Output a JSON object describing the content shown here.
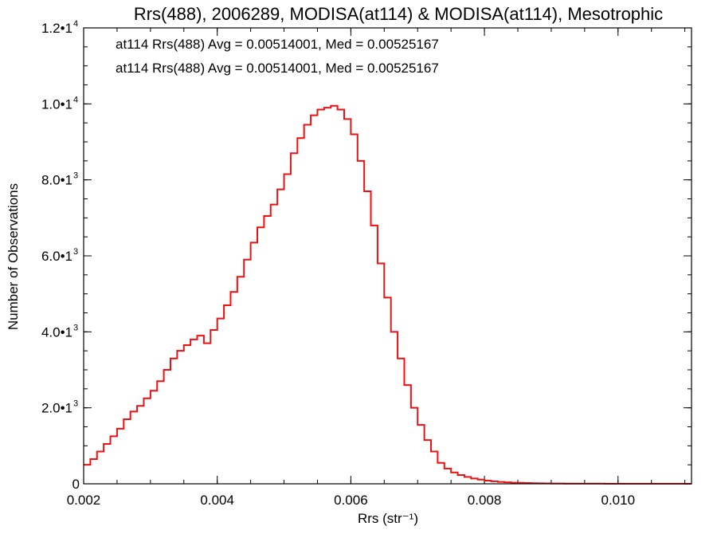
{
  "chart_data": {
    "type": "line",
    "title": "Rrs(488), 2006289, MODISA(at114) & MODISA(at114), Mesotrophic",
    "xlabel": "Rrs (str⁻¹)",
    "ylabel": "Number of Observations",
    "xlim": [
      0.002,
      0.0111
    ],
    "ylim": [
      0,
      12000
    ],
    "grid": false,
    "x_ticks": [
      {
        "value": 0.002,
        "label": "0.002"
      },
      {
        "value": 0.004,
        "label": "0.004"
      },
      {
        "value": 0.006,
        "label": "0.006"
      },
      {
        "value": 0.008,
        "label": "0.008"
      },
      {
        "value": 0.01,
        "label": "0.010"
      }
    ],
    "y_ticks": [
      {
        "value": 0,
        "label": "0",
        "exp": ""
      },
      {
        "value": 2000,
        "label": "2.0•1",
        "exp": "3"
      },
      {
        "value": 4000,
        "label": "4.0•1",
        "exp": "3"
      },
      {
        "value": 6000,
        "label": "6.0•1",
        "exp": "3"
      },
      {
        "value": 8000,
        "label": "8.0•1",
        "exp": "3"
      },
      {
        "value": 10000,
        "label": "1.0•1",
        "exp": "4"
      },
      {
        "value": 12000,
        "label": "1.2•1",
        "exp": "4"
      }
    ],
    "annotations": [
      {
        "text": "at114 Rrs(488) Avg = 0.00514001, Med = 0.00525167",
        "color": "#000000"
      },
      {
        "text": "at114 Rrs(488) Avg = 0.00514001, Med = 0.00525167",
        "color": "#ee1111"
      }
    ],
    "series": [
      {
        "color": "#ee1111",
        "step": true,
        "x": [
          0.002,
          0.0021,
          0.0022,
          0.0023,
          0.0024,
          0.0025,
          0.0026,
          0.0027,
          0.0028,
          0.0029,
          0.003,
          0.0031,
          0.0032,
          0.0033,
          0.0034,
          0.0035,
          0.0036,
          0.0037,
          0.0038,
          0.0039,
          0.004,
          0.0041,
          0.0042,
          0.0043,
          0.0044,
          0.0045,
          0.0046,
          0.0047,
          0.0048,
          0.0049,
          0.005,
          0.0051,
          0.0052,
          0.0053,
          0.0054,
          0.0055,
          0.0056,
          0.0057,
          0.0058,
          0.0059,
          0.006,
          0.0061,
          0.0062,
          0.0063,
          0.0064,
          0.0065,
          0.0066,
          0.0067,
          0.0068,
          0.0069,
          0.007,
          0.0071,
          0.0072,
          0.0073,
          0.0074,
          0.0075,
          0.0076,
          0.0077,
          0.0078,
          0.0079,
          0.008,
          0.0081,
          0.0082,
          0.0083,
          0.0084,
          0.0085,
          0.0086,
          0.0087,
          0.0088,
          0.0089,
          0.009,
          0.0092,
          0.0094,
          0.0096,
          0.0098,
          0.01,
          0.0102,
          0.0104,
          0.0106,
          0.0108,
          0.011,
          0.0111
        ],
        "values": [
          500,
          650,
          850,
          1050,
          1250,
          1450,
          1700,
          1900,
          2050,
          2250,
          2450,
          2700,
          3000,
          3300,
          3500,
          3650,
          3800,
          3900,
          3700,
          4050,
          4350,
          4700,
          5050,
          5450,
          5900,
          6350,
          6750,
          7050,
          7350,
          7750,
          8150,
          8700,
          9100,
          9450,
          9700,
          9850,
          9900,
          9950,
          9850,
          9600,
          9200,
          8500,
          7700,
          6800,
          5800,
          4900,
          4000,
          3300,
          2600,
          2000,
          1550,
          1150,
          850,
          550,
          400,
          300,
          230,
          180,
          140,
          110,
          85,
          65,
          50,
          40,
          30,
          25,
          20,
          15,
          12,
          10,
          8,
          6,
          5,
          4,
          3,
          3,
          2,
          2,
          2,
          2,
          1,
          1
        ]
      }
    ]
  }
}
